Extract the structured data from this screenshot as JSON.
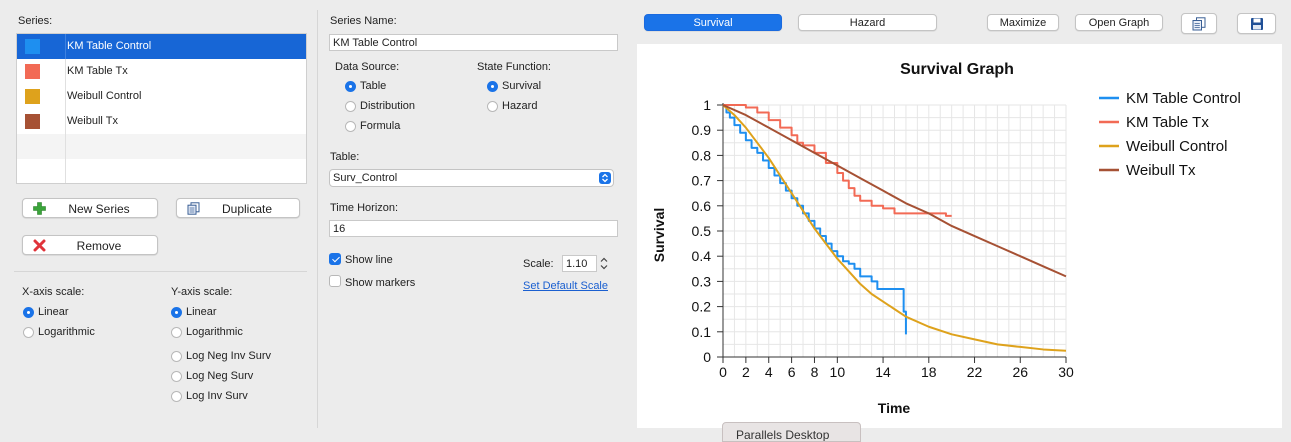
{
  "series_panel": {
    "label": "Series:",
    "items": [
      {
        "name": "KM Table Control",
        "color": "#1e8ff0",
        "selected": true
      },
      {
        "name": "KM Table Tx",
        "color": "#f26a55",
        "selected": false
      },
      {
        "name": "Weibull Control",
        "color": "#dea21c",
        "selected": false
      },
      {
        "name": "Weibull Tx",
        "color": "#a65134",
        "selected": false
      }
    ],
    "new_series_label": "New Series",
    "duplicate_label": "Duplicate",
    "remove_label": "Remove"
  },
  "x_axis_scale": {
    "label": "X-axis scale:",
    "options": [
      "Linear",
      "Logarithmic"
    ],
    "selected": "Linear"
  },
  "y_axis_scale": {
    "label": "Y-axis scale:",
    "options": [
      "Linear",
      "Logarithmic",
      "Log Neg Inv Surv",
      "Log Neg Surv",
      "Log Inv Surv"
    ],
    "selected": "Linear"
  },
  "series_settings": {
    "series_name_label": "Series Name:",
    "series_name_value": "KM Table Control",
    "data_source_label": "Data Source:",
    "data_source_options": [
      "Table",
      "Distribution",
      "Formula"
    ],
    "data_source_selected": "Table",
    "state_function_label": "State Function:",
    "state_function_options": [
      "Survival",
      "Hazard"
    ],
    "state_function_selected": "Survival",
    "table_label": "Table:",
    "table_value": "Surv_Control",
    "time_horizon_label": "Time Horizon:",
    "time_horizon_value": "16",
    "show_line_label": "Show line",
    "show_line_checked": true,
    "show_markers_label": "Show markers",
    "show_markers_checked": false,
    "scale_label": "Scale:",
    "scale_value": "1.10",
    "set_default_scale_label": "Set Default Scale"
  },
  "toolbar": {
    "survival_label": "Survival",
    "hazard_label": "Hazard",
    "maximize_label": "Maximize",
    "open_graph_label": "Open Graph",
    "copy_icon": "copy-icon",
    "save_icon": "save-icon"
  },
  "taskbar_label": "Parallels Desktop",
  "chart_data": {
    "type": "line",
    "title": "Survival Graph",
    "xlabel": "Time",
    "ylabel": "Survival",
    "xlim": [
      0,
      30
    ],
    "ylim": [
      0,
      1
    ],
    "x_ticks": [
      0,
      2,
      4,
      6,
      8,
      10,
      14,
      18,
      22,
      26,
      30
    ],
    "y_ticks": [
      0,
      0.1,
      0.2,
      0.3,
      0.4,
      0.5,
      0.6,
      0.7,
      0.8,
      0.9,
      1
    ],
    "grid": true,
    "legend": "top-right",
    "series": [
      {
        "name": "KM Table Control",
        "color": "#1e8ff0",
        "step": true,
        "x": [
          0,
          0.3,
          0.6,
          1,
          1.5,
          2,
          2.5,
          3,
          3.5,
          4,
          4.5,
          5,
          5.5,
          6,
          6.5,
          7,
          7.5,
          8,
          8.5,
          9,
          9.5,
          10,
          10.5,
          11,
          11.5,
          12,
          12.5,
          13,
          13.5,
          14,
          14.5,
          15,
          15.5,
          15.8,
          16
        ],
        "y": [
          1,
          0.97,
          0.95,
          0.92,
          0.89,
          0.86,
          0.83,
          0.81,
          0.78,
          0.75,
          0.72,
          0.69,
          0.66,
          0.63,
          0.6,
          0.57,
          0.54,
          0.51,
          0.48,
          0.45,
          0.42,
          0.4,
          0.38,
          0.37,
          0.35,
          0.32,
          0.32,
          0.3,
          0.27,
          0.27,
          0.27,
          0.27,
          0.27,
          0.18,
          0.09
        ]
      },
      {
        "name": "KM Table Tx",
        "color": "#f26a55",
        "step": true,
        "x": [
          0,
          1,
          2,
          3,
          4,
          5,
          6,
          6.5,
          7,
          8,
          9,
          10,
          10.5,
          11,
          11.5,
          12,
          13,
          14,
          15,
          16,
          17,
          18,
          19,
          19.5,
          20
        ],
        "y": [
          1,
          1,
          0.99,
          0.97,
          0.94,
          0.91,
          0.88,
          0.85,
          0.84,
          0.81,
          0.77,
          0.73,
          0.7,
          0.67,
          0.64,
          0.62,
          0.6,
          0.59,
          0.57,
          0.57,
          0.57,
          0.57,
          0.57,
          0.56,
          0.56
        ]
      },
      {
        "name": "Weibull Control",
        "color": "#dea21c",
        "step": false,
        "x": [
          0,
          1,
          2,
          3,
          4,
          5,
          6,
          7,
          8,
          9,
          10,
          11,
          12,
          13,
          14,
          15,
          16,
          18,
          20,
          22,
          24,
          26,
          28,
          30
        ],
        "y": [
          1,
          0.96,
          0.91,
          0.85,
          0.79,
          0.72,
          0.65,
          0.58,
          0.51,
          0.45,
          0.39,
          0.34,
          0.29,
          0.25,
          0.22,
          0.19,
          0.16,
          0.12,
          0.09,
          0.07,
          0.05,
          0.04,
          0.03,
          0.025
        ]
      },
      {
        "name": "Weibull Tx",
        "color": "#a65134",
        "step": false,
        "x": [
          0,
          2,
          4,
          6,
          8,
          10,
          12,
          14,
          16,
          18,
          20,
          22,
          24,
          26,
          28,
          30
        ],
        "y": [
          1,
          0.96,
          0.91,
          0.86,
          0.81,
          0.76,
          0.71,
          0.66,
          0.61,
          0.57,
          0.52,
          0.48,
          0.44,
          0.4,
          0.36,
          0.32
        ]
      }
    ]
  }
}
